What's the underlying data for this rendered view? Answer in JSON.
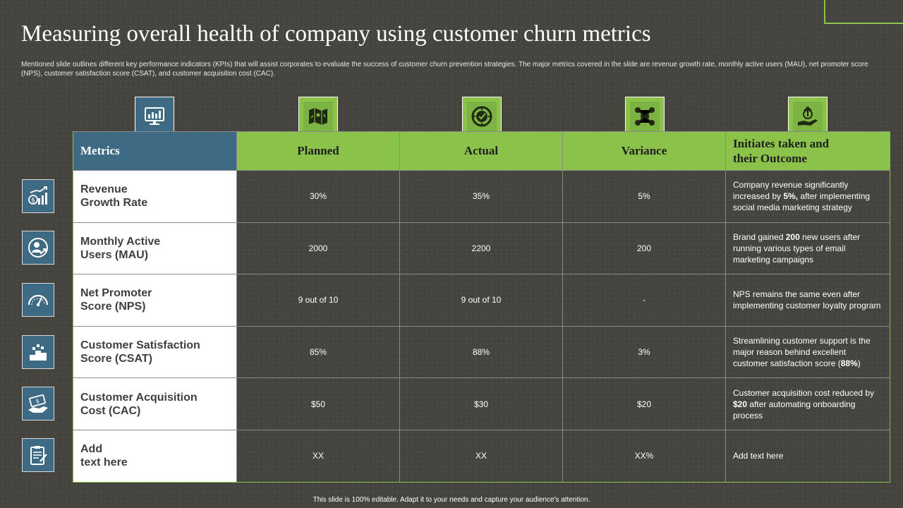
{
  "slide": {
    "title": "Measuring overall health of company using customer churn metrics",
    "subtitle": "Mentioned slide outlines different key performance indicators (KPIs) that will assist corporates to evaluate the success of customer churn prevention strategies. The major metrics covered in the slide are revenue growth rate, monthly active users (MAU), net promoter score (NPS), customer satisfaction score (CSAT), and customer acquisition cost (CAC).",
    "footer": "This slide is 100% editable. Adapt it to your needs and capture your audience's attention."
  },
  "colors": {
    "accent_green": "#8bc34a",
    "accent_blue": "#3e6a84",
    "background": "#46443f"
  },
  "column_icons": [
    "monitor-chart-icon",
    "map-icon",
    "target-check-icon",
    "molecule-network-icon",
    "hand-growth-icon"
  ],
  "table": {
    "headers": {
      "metrics": "Metrics",
      "planned": "Planned",
      "actual": "Actual",
      "variance": "Variance",
      "outcome_line1": "Initiates taken and",
      "outcome_line2": "their Outcome"
    },
    "rows": [
      {
        "icon": "revenue-chart-icon",
        "name_line1": "Revenue",
        "name_line2": "Growth Rate",
        "planned": "30%",
        "actual": "35%",
        "variance": "5%",
        "outcome_pre": "Company revenue  significantly increased by ",
        "outcome_bold": "5%,",
        "outcome_post": " after implementing social media marketing strategy"
      },
      {
        "icon": "user-growth-icon",
        "name_line1": "Monthly Active",
        "name_line2": "Users (MAU)",
        "planned": "2000",
        "actual": "2200",
        "variance": "200",
        "outcome_pre": "Brand gained ",
        "outcome_bold": "200",
        "outcome_post": " new users after running various types of email marketing campaigns"
      },
      {
        "icon": "gauge-icon",
        "name_line1": "Net Promoter",
        "name_line2": "Score (NPS)",
        "planned": "9 out of 10",
        "actual": "9 out of 10",
        "variance": "-",
        "outcome_pre": "NPS remains the same even after implementing customer loyalty program",
        "outcome_bold": "",
        "outcome_post": ""
      },
      {
        "icon": "podium-icon",
        "name_line1": "Customer Satisfaction",
        "name_line2": "Score (CSAT)",
        "planned": "85%",
        "actual": "88%",
        "variance": "3%",
        "outcome_pre": "Streamlining customer support is the major reason behind excellent customer satisfaction score (",
        "outcome_bold": "88%",
        "outcome_post": ")"
      },
      {
        "icon": "money-hand-icon",
        "name_line1": "Customer Acquisition",
        "name_line2": "Cost (CAC)",
        "planned": "$50",
        "actual": "$30",
        "variance": "$20",
        "outcome_pre": "Customer acquisition cost reduced by ",
        "outcome_bold": "$20",
        "outcome_post": " after automating onboarding process"
      },
      {
        "icon": "clipboard-icon",
        "name_line1": "Add",
        "name_line2": "text here",
        "planned": "XX",
        "actual": "XX",
        "variance": "XX%",
        "outcome_pre": "Add text here",
        "outcome_bold": "",
        "outcome_post": ""
      }
    ]
  }
}
